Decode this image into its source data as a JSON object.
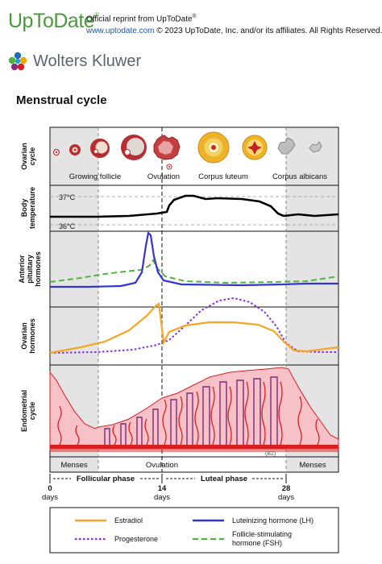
{
  "header": {
    "logo": "UpToDate",
    "logo_mark": "®",
    "reprint_line": "Official reprint from UpToDate",
    "reprint_mark": "®",
    "url": "www.uptodate.com",
    "rights": "© 2023 UpToDate, Inc. and/or its affiliates. All Rights Reserved.",
    "publisher": "Wolters Kluwer"
  },
  "title": "Menstrual cycle",
  "colors": {
    "estradiol": "#f5a623",
    "lh": "#3434d6",
    "progesterone": "#8a2be2",
    "fsh": "#4cb53a",
    "menses_shade": "#e3e3e3",
    "endometrium_fill": "#f7c1c8",
    "vessel": "#d92020"
  },
  "panels": {
    "ovarian_cycle": {
      "label_line1": "Ovarian",
      "label_line2": "cycle",
      "stages": [
        "Growing follicle",
        "Ovulation",
        "Corpus luteum",
        "Corpus albicans"
      ]
    },
    "body_temperature": {
      "label_line1": "Body",
      "label_line2": "temperature",
      "high": "37°C",
      "low": "36°C"
    },
    "pituitary": {
      "label_line1": "Anterior",
      "label_line2": "pituitary",
      "label_line3": "hormones"
    },
    "ovarian_hormones": {
      "label_line1": "Ovarian",
      "label_line2": "hormones"
    },
    "endometrial": {
      "label_line1": "Endometrial",
      "label_line2": "cycle",
      "artist_mark": "(B2)"
    }
  },
  "phase_bar": {
    "menses_left": "Menses",
    "ovulation": "Ovulation",
    "menses_right": "Menses"
  },
  "timeline": {
    "follicular": "Follicular phase",
    "luteal": "Luteal phase",
    "ticks": [
      {
        "day": "0",
        "unit": "days"
      },
      {
        "day": "14",
        "unit": "days"
      },
      {
        "day": "28",
        "unit": "days"
      }
    ]
  },
  "legend": [
    {
      "label": "Estradiol",
      "style": "solid",
      "color_key": "estradiol"
    },
    {
      "label": "Luteinizing hormone (LH)",
      "style": "solid",
      "color_key": "lh"
    },
    {
      "label": "Progesterone",
      "style": "dotted",
      "color_key": "progesterone"
    },
    {
      "label_line1": "Follicle-stimulating",
      "label_line2": "hormone (FSH)",
      "style": "dashed",
      "color_key": "fsh"
    }
  ]
}
